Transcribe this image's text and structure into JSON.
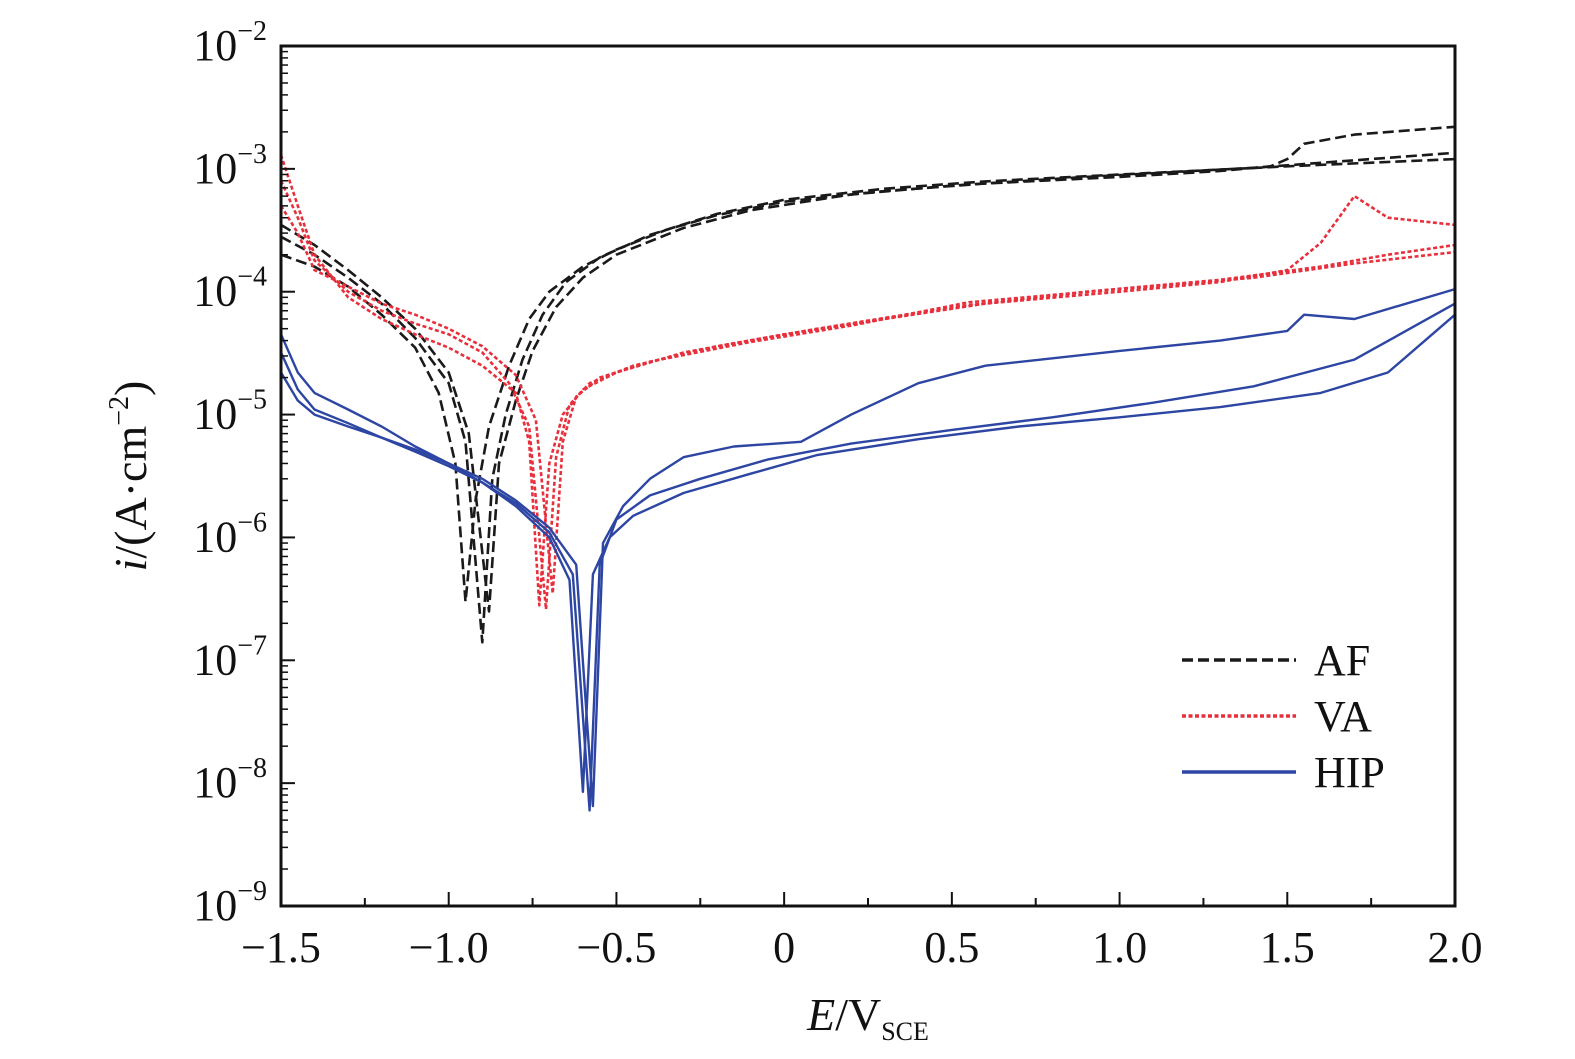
{
  "chart_data": {
    "type": "line",
    "title": "",
    "xlabel": {
      "main": "E",
      "sep": "/V",
      "sub": "SCE"
    },
    "ylabel": {
      "main": "i",
      "rest": "/(A·cm",
      "sup": "−2",
      "close": ")"
    },
    "xlim": [
      -1.5,
      2.0
    ],
    "ylim": [
      1e-09,
      0.01
    ],
    "y_scale": "log",
    "x_ticks": [
      {
        "value": -1.5,
        "label": "−1.5"
      },
      {
        "value": -1.0,
        "label": "−1.0"
      },
      {
        "value": -0.5,
        "label": "−0.5"
      },
      {
        "value": 0,
        "label": "0"
      },
      {
        "value": 0.5,
        "label": "0.5"
      },
      {
        "value": 1.0,
        "label": "1.0"
      },
      {
        "value": 1.5,
        "label": "1.5"
      },
      {
        "value": 2.0,
        "label": "2.0"
      }
    ],
    "y_ticks": [
      {
        "exp": -2,
        "base": "10",
        "sup": "−2"
      },
      {
        "exp": -3,
        "base": "10",
        "sup": "−3"
      },
      {
        "exp": -4,
        "base": "10",
        "sup": "−4"
      },
      {
        "exp": -5,
        "base": "10",
        "sup": "−5"
      },
      {
        "exp": -6,
        "base": "10",
        "sup": "−6"
      },
      {
        "exp": -7,
        "base": "10",
        "sup": "−7"
      },
      {
        "exp": -8,
        "base": "10",
        "sup": "−8"
      },
      {
        "exp": -9,
        "base": "10",
        "sup": "−9"
      }
    ],
    "grid": false,
    "legend_position": "bottom-right",
    "series": [
      {
        "name": "AF",
        "color": "#1a1a1a",
        "style": "dashed",
        "curves": [
          [
            [
              -1.5,
              0.0002
            ],
            [
              -1.4,
              0.00016
            ],
            [
              -1.3,
              0.00011
            ],
            [
              -1.2,
              6.5e-05
            ],
            [
              -1.1,
              3.5e-05
            ],
            [
              -1.03,
              1.5e-05
            ],
            [
              -0.98,
              4e-06
            ],
            [
              -0.95,
              3e-07
            ],
            [
              -0.92,
              2e-06
            ],
            [
              -0.88,
              8e-06
            ],
            [
              -0.82,
              2.5e-05
            ],
            [
              -0.76,
              6e-05
            ],
            [
              -0.7,
              0.0001
            ],
            [
              -0.6,
              0.00016
            ],
            [
              -0.5,
              0.00022
            ],
            [
              -0.35,
              0.00032
            ],
            [
              -0.2,
              0.00042
            ],
            [
              0,
              0.00054
            ],
            [
              0.3,
              0.00066
            ],
            [
              0.6,
              0.00076
            ],
            [
              1.0,
              0.00086
            ],
            [
              1.3,
              0.00096
            ],
            [
              1.45,
              0.00105
            ],
            [
              1.5,
              0.0012
            ],
            [
              1.55,
              0.0016
            ],
            [
              1.7,
              0.0019
            ],
            [
              2.0,
              0.0022
            ]
          ],
          [
            [
              -1.5,
              0.00028
            ],
            [
              -1.4,
              0.0002
            ],
            [
              -1.3,
              0.00013
            ],
            [
              -1.2,
              8e-05
            ],
            [
              -1.1,
              4.2e-05
            ],
            [
              -1.0,
              1.8e-05
            ],
            [
              -0.95,
              6e-06
            ],
            [
              -0.9,
              1.4e-07
            ],
            [
              -0.87,
              3e-06
            ],
            [
              -0.83,
              1e-05
            ],
            [
              -0.78,
              2.8e-05
            ],
            [
              -0.72,
              6.5e-05
            ],
            [
              -0.65,
              0.00012
            ],
            [
              -0.55,
              0.00019
            ],
            [
              -0.4,
              0.00029
            ],
            [
              -0.2,
              0.00043
            ],
            [
              0,
              0.00056
            ],
            [
              0.3,
              0.00069
            ],
            [
              0.6,
              0.00079
            ],
            [
              1.0,
              0.0009
            ],
            [
              1.5,
              0.00105
            ],
            [
              2.0,
              0.0012
            ]
          ],
          [
            [
              -1.5,
              0.00035
            ],
            [
              -1.4,
              0.00024
            ],
            [
              -1.3,
              0.00015
            ],
            [
              -1.2,
              9e-05
            ],
            [
              -1.1,
              5e-05
            ],
            [
              -1.0,
              2.2e-05
            ],
            [
              -0.94,
              7e-06
            ],
            [
              -0.88,
              2.5e-07
            ],
            [
              -0.85,
              4e-06
            ],
            [
              -0.8,
              1.3e-05
            ],
            [
              -0.75,
              3.3e-05
            ],
            [
              -0.68,
              7.5e-05
            ],
            [
              -0.6,
              0.00013
            ],
            [
              -0.5,
              0.0002
            ],
            [
              -0.3,
              0.00033
            ],
            [
              -0.1,
              0.00046
            ],
            [
              0.2,
              0.00062
            ],
            [
              0.5,
              0.00073
            ],
            [
              0.9,
              0.00086
            ],
            [
              1.4,
              0.00102
            ],
            [
              2.0,
              0.00135
            ]
          ]
        ]
      },
      {
        "name": "VA",
        "color": "#e8303d",
        "style": "dotted",
        "curves": [
          [
            [
              -1.5,
              0.0013
            ],
            [
              -1.45,
              0.0005
            ],
            [
              -1.4,
              0.0002
            ],
            [
              -1.3,
              9e-05
            ],
            [
              -1.2,
              6e-05
            ],
            [
              -1.1,
              4.5e-05
            ],
            [
              -1.0,
              3.5e-05
            ],
            [
              -0.9,
              2.5e-05
            ],
            [
              -0.8,
              1.5e-05
            ],
            [
              -0.76,
              6e-06
            ],
            [
              -0.73,
              2.8e-07
            ],
            [
              -0.7,
              4e-06
            ],
            [
              -0.66,
              1e-05
            ],
            [
              -0.6,
              1.6e-05
            ],
            [
              -0.5,
              2.2e-05
            ],
            [
              -0.3,
              3.2e-05
            ],
            [
              0,
              4.5e-05
            ],
            [
              0.3,
              6e-05
            ],
            [
              0.6,
              8e-05
            ],
            [
              1.0,
              0.0001
            ],
            [
              1.3,
              0.00012
            ],
            [
              1.5,
              0.00015
            ],
            [
              1.6,
              0.00025
            ],
            [
              1.7,
              0.0006
            ],
            [
              1.8,
              0.0004
            ],
            [
              2.0,
              0.00035
            ]
          ],
          [
            [
              -1.5,
              0.0008
            ],
            [
              -1.45,
              0.0004
            ],
            [
              -1.4,
              0.00018
            ],
            [
              -1.3,
              0.0001
            ],
            [
              -1.2,
              7e-05
            ],
            [
              -1.1,
              5.5e-05
            ],
            [
              -1.0,
              4.5e-05
            ],
            [
              -0.9,
              3.2e-05
            ],
            [
              -0.82,
              1.8e-05
            ],
            [
              -0.76,
              8e-06
            ],
            [
              -0.71,
              2.6e-07
            ],
            [
              -0.68,
              4.5e-06
            ],
            [
              -0.64,
              1.2e-05
            ],
            [
              -0.58,
              1.8e-05
            ],
            [
              -0.45,
              2.5e-05
            ],
            [
              -0.2,
              3.6e-05
            ],
            [
              0.1,
              5e-05
            ],
            [
              0.5,
              7.5e-05
            ],
            [
              0.9,
              0.0001
            ],
            [
              1.3,
              0.000125
            ],
            [
              1.6,
              0.00016
            ],
            [
              1.8,
              0.0002
            ],
            [
              2.0,
              0.00024
            ]
          ],
          [
            [
              -1.5,
              0.0005
            ],
            [
              -1.45,
              0.0003
            ],
            [
              -1.4,
              0.00015
            ],
            [
              -1.3,
              0.00011
            ],
            [
              -1.2,
              8e-05
            ],
            [
              -1.1,
              6.5e-05
            ],
            [
              -1.0,
              5e-05
            ],
            [
              -0.9,
              3.6e-05
            ],
            [
              -0.8,
              2.1e-05
            ],
            [
              -0.74,
              9e-06
            ],
            [
              -0.69,
              3.5e-07
            ],
            [
              -0.66,
              6e-06
            ],
            [
              -0.62,
              1.4e-05
            ],
            [
              -0.55,
              2e-05
            ],
            [
              -0.4,
              2.7e-05
            ],
            [
              -0.1,
              3.9e-05
            ],
            [
              0.2,
              5.3e-05
            ],
            [
              0.55,
              8.2e-05
            ],
            [
              1.0,
              0.000105
            ],
            [
              1.4,
              0.00013
            ],
            [
              1.7,
              0.00017
            ],
            [
              2.0,
              0.00021
            ]
          ]
        ]
      },
      {
        "name": "HIP",
        "color": "#2d45a3",
        "style": "solid",
        "curves": [
          [
            [
              -1.5,
              4.5e-05
            ],
            [
              -1.45,
              2.2e-05
            ],
            [
              -1.4,
              1.5e-05
            ],
            [
              -1.3,
              1.1e-05
            ],
            [
              -1.2,
              8e-06
            ],
            [
              -1.1,
              5.5e-06
            ],
            [
              -1.0,
              4e-06
            ],
            [
              -0.9,
              2.8e-06
            ],
            [
              -0.8,
              1.8e-06
            ],
            [
              -0.7,
              1e-06
            ],
            [
              -0.64,
              4.5e-07
            ],
            [
              -0.6,
              8.5e-09
            ],
            [
              -0.57,
              5e-07
            ],
            [
              -0.52,
              1e-06
            ],
            [
              -0.45,
              1.5e-06
            ],
            [
              -0.3,
              2.3e-06
            ],
            [
              -0.1,
              3.3e-06
            ],
            [
              0.1,
              4.7e-06
            ],
            [
              0.4,
              6.3e-06
            ],
            [
              0.7,
              8e-06
            ],
            [
              1.0,
              9.5e-06
            ],
            [
              1.3,
              1.15e-05
            ],
            [
              1.6,
              1.5e-05
            ],
            [
              1.8,
              2.2e-05
            ],
            [
              2.0,
              6.5e-05
            ]
          ],
          [
            [
              -1.5,
              3.2e-05
            ],
            [
              -1.45,
              1.6e-05
            ],
            [
              -1.4,
              1.1e-05
            ],
            [
              -1.3,
              8.5e-06
            ],
            [
              -1.2,
              6.5e-06
            ],
            [
              -1.1,
              5e-06
            ],
            [
              -1.0,
              3.8e-06
            ],
            [
              -0.9,
              2.8e-06
            ],
            [
              -0.8,
              1.9e-06
            ],
            [
              -0.7,
              1.1e-06
            ],
            [
              -0.63,
              5e-07
            ],
            [
              -0.58,
              6e-09
            ],
            [
              -0.55,
              6e-07
            ],
            [
              -0.5,
              1.4e-06
            ],
            [
              -0.4,
              2.2e-06
            ],
            [
              -0.25,
              3e-06
            ],
            [
              -0.05,
              4.3e-06
            ],
            [
              0.2,
              5.8e-06
            ],
            [
              0.5,
              7.5e-06
            ],
            [
              0.8,
              9.5e-06
            ],
            [
              1.1,
              1.25e-05
            ],
            [
              1.4,
              1.7e-05
            ],
            [
              1.7,
              2.8e-05
            ],
            [
              2.0,
              8e-05
            ]
          ],
          [
            [
              -1.5,
              2.2e-05
            ],
            [
              -1.45,
              1.3e-05
            ],
            [
              -1.4,
              1e-05
            ],
            [
              -1.3,
              8e-06
            ],
            [
              -1.2,
              6.5e-06
            ],
            [
              -1.1,
              5.2e-06
            ],
            [
              -1.0,
              4e-06
            ],
            [
              -0.9,
              3e-06
            ],
            [
              -0.8,
              2e-06
            ],
            [
              -0.7,
              1.2e-06
            ],
            [
              -0.62,
              6e-07
            ],
            [
              -0.57,
              6.5e-09
            ],
            [
              -0.54,
              9e-07
            ],
            [
              -0.48,
              1.8e-06
            ],
            [
              -0.4,
              3e-06
            ],
            [
              -0.3,
              4.5e-06
            ],
            [
              -0.15,
              5.5e-06
            ],
            [
              0.05,
              6e-06
            ],
            [
              0.2,
              1e-05
            ],
            [
              0.4,
              1.8e-05
            ],
            [
              0.6,
              2.5e-05
            ],
            [
              1.0,
              3.3e-05
            ],
            [
              1.3,
              4e-05
            ],
            [
              1.5,
              4.8e-05
            ],
            [
              1.55,
              6.5e-05
            ],
            [
              1.7,
              6e-05
            ],
            [
              2.0,
              0.000105
            ]
          ]
        ]
      }
    ]
  }
}
